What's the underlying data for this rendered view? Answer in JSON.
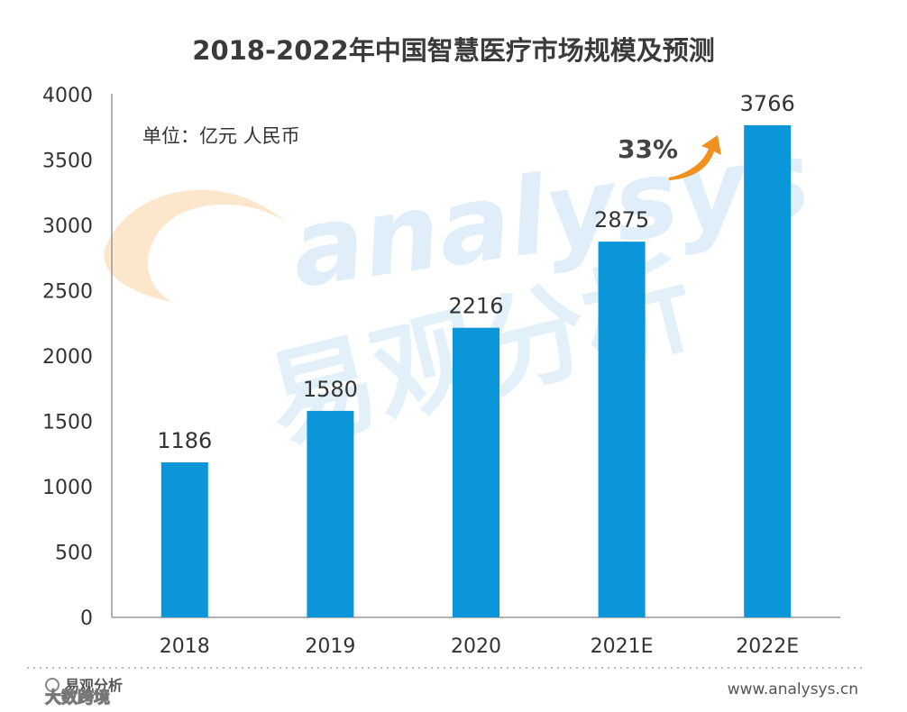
{
  "chart_data": {
    "type": "bar",
    "title": "2018-2022年中国智慧医疗市场规模及预测",
    "unit_note": "单位：亿元 人民币",
    "categories": [
      "2018",
      "2019",
      "2020",
      "2021E",
      "2022E"
    ],
    "values": [
      1186,
      1580,
      2216,
      2875,
      3766
    ],
    "ylim": [
      0,
      4000
    ],
    "yticks": [
      0,
      500,
      1000,
      1500,
      2000,
      2500,
      3000,
      3500,
      4000
    ],
    "grid": false,
    "bar_color": "#0b96d9",
    "growth_annotation": {
      "text": "33%",
      "arrow_color": "#f0901e"
    }
  },
  "footer": {
    "left_brand": "易观分析",
    "left_source": "大数跨境",
    "right_url": "www.analysys.cn"
  },
  "watermark": {
    "latin": "analysys",
    "chinese": "易观分析",
    "colors": {
      "orange": "#fde3c3",
      "blue": "#d8ebf8"
    }
  }
}
